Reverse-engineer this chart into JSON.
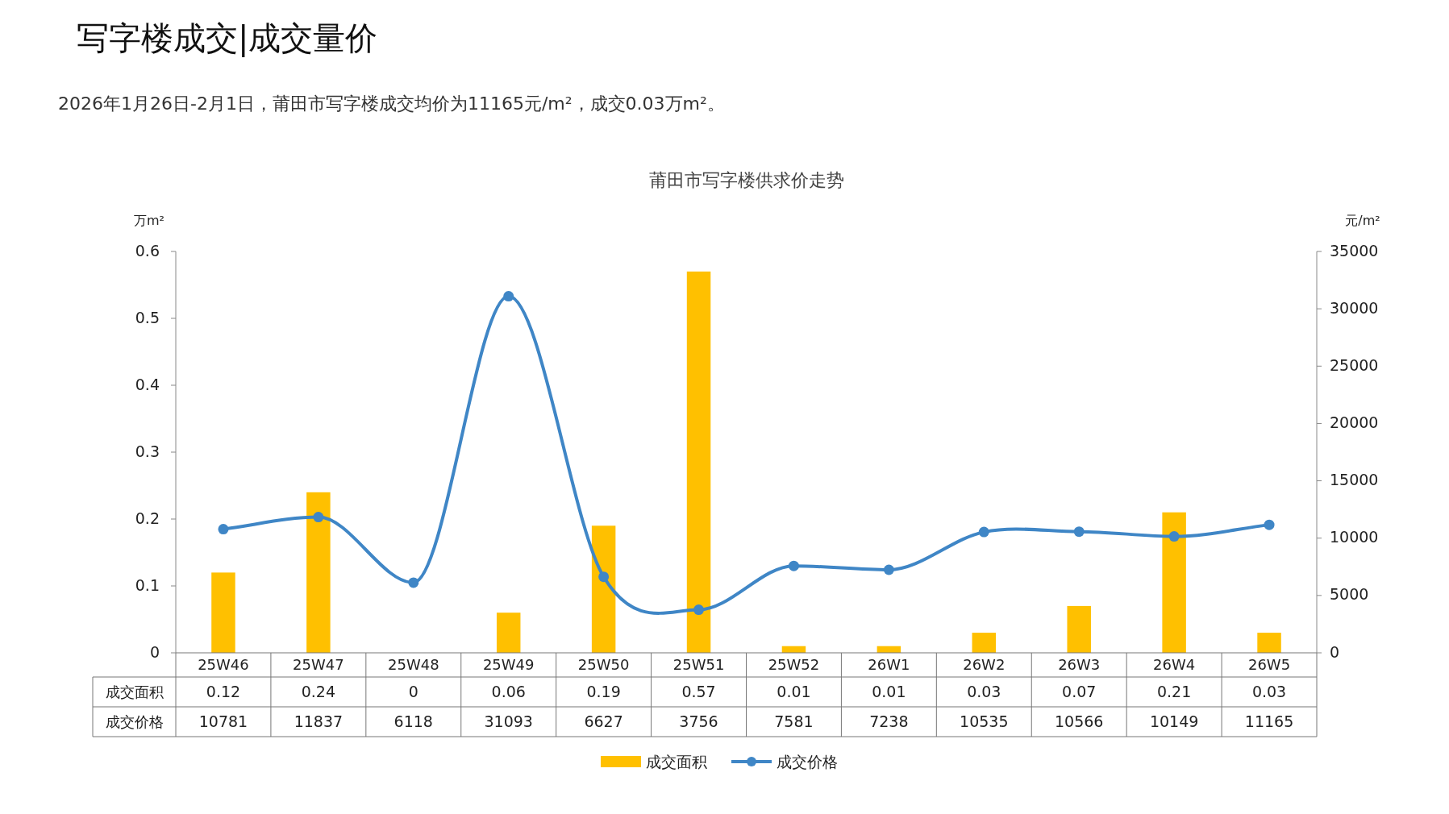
{
  "chart_data": {
    "type": "bar",
    "title": "莆田市写字楼供求价走势",
    "annotations": [
      "写字楼成交|成交量价",
      "2026年1月26日-2月1日，莆田市写字楼成交均价为11165元/m²，成交0.03万m²。"
    ],
    "ylabel": "万m²",
    "y2label": "元/m²",
    "categories": [
      "25W46",
      "25W47",
      "25W48",
      "25W49",
      "25W50",
      "25W51",
      "25W52",
      "26W1",
      "26W2",
      "26W3",
      "26W4",
      "26W5"
    ],
    "series": [
      {
        "name": "成交面积",
        "color": "#ffc000",
        "values": [
          0.12,
          0.24,
          0,
          0.06,
          0.19,
          0.57,
          0.01,
          0.01,
          0.03,
          0.07,
          0.21,
          0.03
        ]
      },
      {
        "name": "成交价格",
        "type": "line",
        "axis": "y2",
        "color": "#3f86c6",
        "marker": "circle",
        "values": [
          10781,
          11837,
          6118,
          31093,
          6627,
          3756,
          7581,
          7238,
          10535,
          10566,
          10149,
          11165
        ]
      }
    ],
    "ylim": [
      0,
      0.6
    ],
    "yticks": [
      0,
      0.1,
      0.2,
      0.3,
      0.4,
      0.5,
      0.6
    ],
    "y2lim": [
      0,
      35000
    ],
    "y2ticks": [
      0,
      5000,
      10000,
      15000,
      20000,
      25000,
      30000,
      35000
    ],
    "data_labels": true,
    "grid": false,
    "legend": "bottom"
  }
}
